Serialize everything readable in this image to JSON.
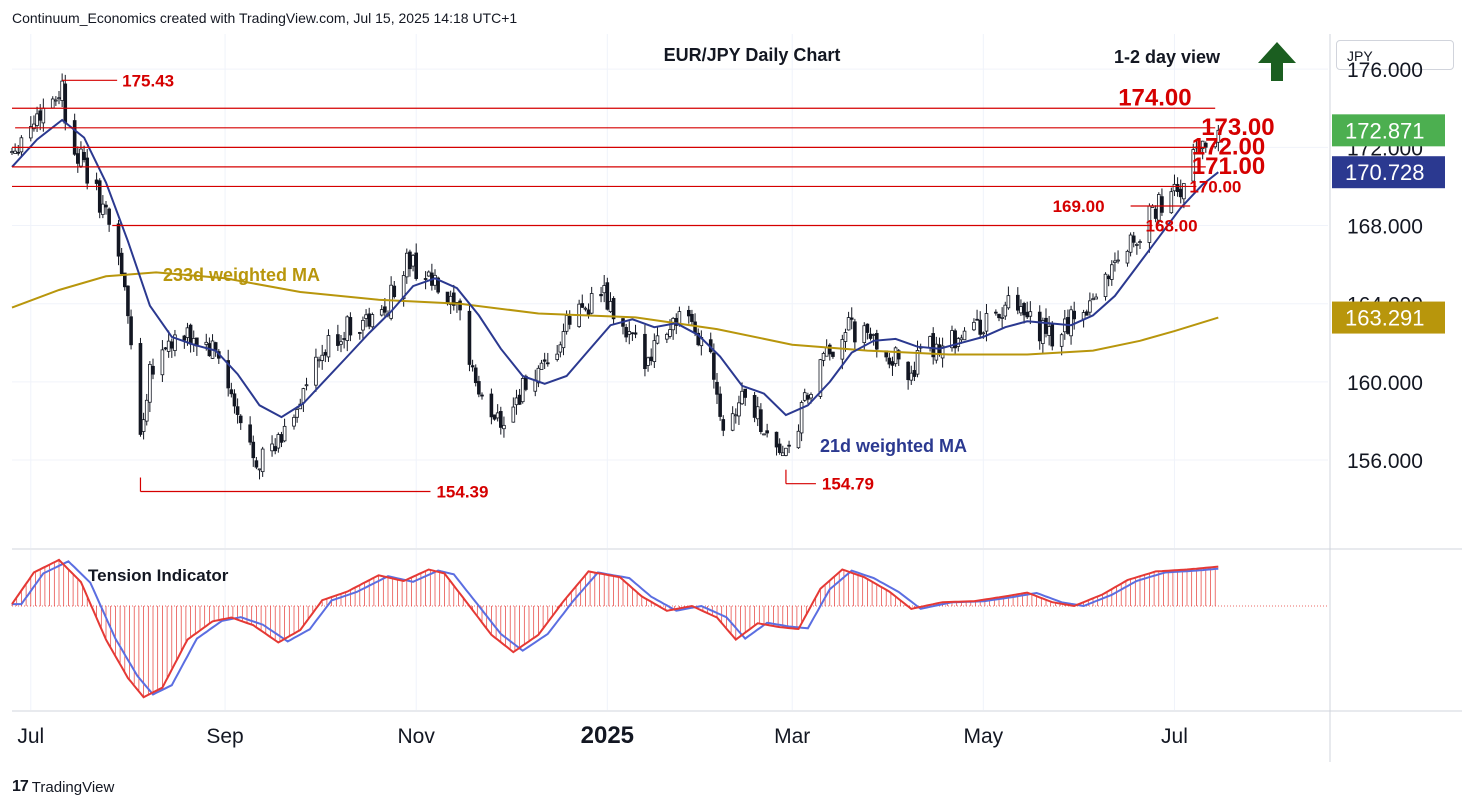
{
  "header": "Continuum_Economics created with TradingView.com, Jul 15, 2025 14:18 UTC+1",
  "brand": "TradingView",
  "currency": "JPY",
  "chart_data": {
    "type": "candlestick",
    "title": "EUR/JPY Daily Chart",
    "view_label": "1-2 day view",
    "view_direction": "up",
    "y_axis": {
      "ticks": [
        {
          "label": "176.000",
          "value": 176
        },
        {
          "label": "172.000",
          "value": 172
        },
        {
          "label": "168.000",
          "value": 168
        },
        {
          "label": "164.000",
          "value": 164
        },
        {
          "label": "160.000",
          "value": 160
        },
        {
          "label": "156.000",
          "value": 156
        }
      ],
      "range": [
        151.5,
        177.8
      ]
    },
    "x_axis": {
      "ticks": [
        {
          "label": "Jul",
          "date": "2024-07-01",
          "bold": false
        },
        {
          "label": "Sep",
          "date": "2024-09-01",
          "bold": false
        },
        {
          "label": "Nov",
          "date": "2024-11-01",
          "bold": false
        },
        {
          "label": "2025",
          "date": "2025-01-01",
          "bold": true
        },
        {
          "label": "Mar",
          "date": "2025-03-01",
          "bold": false
        },
        {
          "label": "May",
          "date": "2025-05-01",
          "bold": false
        },
        {
          "label": "Jul",
          "date": "2025-07-01",
          "bold": false
        }
      ],
      "range": [
        "2024-06-25",
        "2025-08-19"
      ]
    },
    "price_labels": [
      {
        "label": "172.871",
        "value": 172.871,
        "color": "#4caf50",
        "type": "last"
      },
      {
        "label": "170.728",
        "value": 170.728,
        "color": "#2b3990",
        "type": "ma21"
      },
      {
        "label": "163.291",
        "value": 163.291,
        "color": "#b8960c",
        "type": "ma233"
      }
    ],
    "levels": [
      {
        "label": "175.43",
        "value": 175.43,
        "start": "2024-07-11",
        "end": "2024-07-11",
        "label_size": "small"
      },
      {
        "label": "174.00",
        "value": 174.0,
        "start": "2024-06-25",
        "end": "2025-07-14",
        "label_size": "big"
      },
      {
        "label": "173.00",
        "value": 173.0,
        "start": "2024-06-26",
        "end": "2025-07-14",
        "label_size": "big"
      },
      {
        "label": "172.00",
        "value": 172.0,
        "start": "2024-06-25",
        "end": "2025-07-11",
        "label_size": "big"
      },
      {
        "label": "171.00",
        "value": 171.0,
        "start": "2024-06-25",
        "end": "2025-07-11",
        "label_size": "big"
      },
      {
        "label": "170.00",
        "value": 170.0,
        "start": "2024-06-25",
        "end": "2025-07-08",
        "label_size": "small"
      },
      {
        "label": "169.00",
        "value": 169.0,
        "start": "2025-06-17",
        "end": "2025-07-06",
        "label_size": "small_left"
      },
      {
        "label": "168.00",
        "value": 168.0,
        "start": "2024-07-27",
        "end": "2025-06-24",
        "label_size": "small"
      },
      {
        "label": "154.39",
        "value": 154.39,
        "start": "2024-08-05",
        "end": "2024-11-20",
        "label_size": "small"
      },
      {
        "label": "154.79",
        "value": 154.79,
        "start": "2025-02-27",
        "end": "2025-03-10",
        "label_size": "small"
      }
    ],
    "annotations": [
      {
        "text": "233d weighted MA",
        "color": "#b8960c"
      },
      {
        "text": "21d weighted MA",
        "color": "#2b3990"
      }
    ],
    "anchors": [
      {
        "date": "2024-06-25",
        "close": 171.9
      },
      {
        "date": "2024-07-03",
        "close": 173.6
      },
      {
        "date": "2024-07-11",
        "close": 175.1
      },
      {
        "date": "2024-07-12",
        "close": 173.5
      },
      {
        "date": "2024-07-17",
        "close": 171.3
      },
      {
        "date": "2024-07-24",
        "close": 168.9
      },
      {
        "date": "2024-07-29",
        "close": 166.8
      },
      {
        "date": "2024-08-02",
        "close": 162.2
      },
      {
        "date": "2024-08-05",
        "close": 157.2
      },
      {
        "date": "2024-08-08",
        "close": 160.8
      },
      {
        "date": "2024-08-14",
        "close": 162.0
      },
      {
        "date": "2024-08-22",
        "close": 162.2
      },
      {
        "date": "2024-08-30",
        "close": 161.3
      },
      {
        "date": "2024-09-05",
        "close": 158.0
      },
      {
        "date": "2024-09-11",
        "close": 156.1
      },
      {
        "date": "2024-09-17",
        "close": 156.5
      },
      {
        "date": "2024-09-27",
        "close": 159.8
      },
      {
        "date": "2024-10-04",
        "close": 161.8
      },
      {
        "date": "2024-10-11",
        "close": 162.9
      },
      {
        "date": "2024-10-21",
        "close": 163.3
      },
      {
        "date": "2024-10-29",
        "close": 166.2
      },
      {
        "date": "2024-11-04",
        "close": 165.5
      },
      {
        "date": "2024-11-08",
        "close": 164.6
      },
      {
        "date": "2024-11-15",
        "close": 163.2
      },
      {
        "date": "2024-11-22",
        "close": 158.8
      },
      {
        "date": "2024-11-29",
        "close": 158.1
      },
      {
        "date": "2024-12-06",
        "close": 159.9
      },
      {
        "date": "2024-12-13",
        "close": 160.5
      },
      {
        "date": "2024-12-20",
        "close": 163.2
      },
      {
        "date": "2024-12-30",
        "close": 164.6
      },
      {
        "date": "2025-01-06",
        "close": 162.5
      },
      {
        "date": "2025-01-13",
        "close": 161.3
      },
      {
        "date": "2025-01-20",
        "close": 162.8
      },
      {
        "date": "2025-01-24",
        "close": 163.3
      },
      {
        "date": "2025-02-03",
        "close": 161.6
      },
      {
        "date": "2025-02-07",
        "close": 157.8
      },
      {
        "date": "2025-02-14",
        "close": 159.5
      },
      {
        "date": "2025-02-21",
        "close": 157.3
      },
      {
        "date": "2025-02-28",
        "close": 156.1
      },
      {
        "date": "2025-03-04",
        "close": 158.5
      },
      {
        "date": "2025-03-11",
        "close": 161.0
      },
      {
        "date": "2025-03-18",
        "close": 162.8
      },
      {
        "date": "2025-03-28",
        "close": 162.0
      },
      {
        "date": "2025-04-07",
        "close": 160.5
      },
      {
        "date": "2025-04-14",
        "close": 161.7
      },
      {
        "date": "2025-04-25",
        "close": 162.6
      },
      {
        "date": "2025-05-02",
        "close": 163.0
      },
      {
        "date": "2025-05-09",
        "close": 163.8
      },
      {
        "date": "2025-05-16",
        "close": 163.0
      },
      {
        "date": "2025-05-23",
        "close": 162.2
      },
      {
        "date": "2025-05-30",
        "close": 163.3
      },
      {
        "date": "2025-06-06",
        "close": 164.5
      },
      {
        "date": "2025-06-13",
        "close": 166.5
      },
      {
        "date": "2025-06-20",
        "close": 167.7
      },
      {
        "date": "2025-06-27",
        "close": 169.2
      },
      {
        "date": "2025-07-03",
        "close": 169.8
      },
      {
        "date": "2025-07-08",
        "close": 171.9
      },
      {
        "date": "2025-07-11",
        "close": 172.3
      },
      {
        "date": "2025-07-15",
        "close": 172.871
      }
    ],
    "ma21_points": [
      {
        "date": "2024-06-25",
        "value": 171.0
      },
      {
        "date": "2024-07-03",
        "value": 172.4
      },
      {
        "date": "2024-07-11",
        "value": 173.4
      },
      {
        "date": "2024-07-18",
        "value": 172.5
      },
      {
        "date": "2024-07-25",
        "value": 170.2
      },
      {
        "date": "2024-08-01",
        "value": 167.2
      },
      {
        "date": "2024-08-08",
        "value": 163.9
      },
      {
        "date": "2024-08-15",
        "value": 162.3
      },
      {
        "date": "2024-08-22",
        "value": 161.9
      },
      {
        "date": "2024-08-29",
        "value": 161.6
      },
      {
        "date": "2024-09-05",
        "value": 160.4
      },
      {
        "date": "2024-09-12",
        "value": 158.8
      },
      {
        "date": "2024-09-19",
        "value": 158.2
      },
      {
        "date": "2024-09-26",
        "value": 158.9
      },
      {
        "date": "2024-10-03",
        "value": 160.1
      },
      {
        "date": "2024-10-10",
        "value": 161.3
      },
      {
        "date": "2024-10-17",
        "value": 162.5
      },
      {
        "date": "2024-10-24",
        "value": 163.6
      },
      {
        "date": "2024-10-31",
        "value": 164.9
      },
      {
        "date": "2024-11-07",
        "value": 165.3
      },
      {
        "date": "2024-11-14",
        "value": 164.8
      },
      {
        "date": "2024-11-21",
        "value": 163.4
      },
      {
        "date": "2024-11-28",
        "value": 161.7
      },
      {
        "date": "2024-12-05",
        "value": 160.3
      },
      {
        "date": "2024-12-12",
        "value": 159.9
      },
      {
        "date": "2024-12-19",
        "value": 160.3
      },
      {
        "date": "2024-12-26",
        "value": 161.6
      },
      {
        "date": "2025-01-02",
        "value": 162.9
      },
      {
        "date": "2025-01-09",
        "value": 163.2
      },
      {
        "date": "2025-01-16",
        "value": 162.8
      },
      {
        "date": "2025-01-23",
        "value": 163.0
      },
      {
        "date": "2025-01-30",
        "value": 162.4
      },
      {
        "date": "2025-02-06",
        "value": 161.3
      },
      {
        "date": "2025-02-13",
        "value": 159.8
      },
      {
        "date": "2025-02-20",
        "value": 159.4
      },
      {
        "date": "2025-02-27",
        "value": 158.3
      },
      {
        "date": "2025-03-06",
        "value": 158.8
      },
      {
        "date": "2025-03-13",
        "value": 160.0
      },
      {
        "date": "2025-03-20",
        "value": 161.5
      },
      {
        "date": "2025-03-27",
        "value": 162.1
      },
      {
        "date": "2025-04-03",
        "value": 162.2
      },
      {
        "date": "2025-04-10",
        "value": 161.8
      },
      {
        "date": "2025-04-17",
        "value": 161.7
      },
      {
        "date": "2025-04-24",
        "value": 162.0
      },
      {
        "date": "2025-05-01",
        "value": 162.3
      },
      {
        "date": "2025-05-08",
        "value": 162.8
      },
      {
        "date": "2025-05-15",
        "value": 163.1
      },
      {
        "date": "2025-05-22",
        "value": 163.0
      },
      {
        "date": "2025-05-29",
        "value": 162.9
      },
      {
        "date": "2025-06-05",
        "value": 163.4
      },
      {
        "date": "2025-06-12",
        "value": 164.4
      },
      {
        "date": "2025-06-19",
        "value": 165.9
      },
      {
        "date": "2025-06-26",
        "value": 167.4
      },
      {
        "date": "2025-07-03",
        "value": 168.9
      },
      {
        "date": "2025-07-10",
        "value": 170.1
      },
      {
        "date": "2025-07-15",
        "value": 170.728
      }
    ],
    "ma233_points": [
      {
        "date": "2024-06-25",
        "value": 163.8
      },
      {
        "date": "2024-07-10",
        "value": 164.7
      },
      {
        "date": "2024-07-25",
        "value": 165.4
      },
      {
        "date": "2024-08-10",
        "value": 165.6
      },
      {
        "date": "2024-09-01",
        "value": 165.3
      },
      {
        "date": "2024-09-25",
        "value": 164.6
      },
      {
        "date": "2024-10-20",
        "value": 164.2
      },
      {
        "date": "2024-11-15",
        "value": 164.0
      },
      {
        "date": "2024-12-10",
        "value": 163.5
      },
      {
        "date": "2025-01-10",
        "value": 163.3
      },
      {
        "date": "2025-02-05",
        "value": 162.7
      },
      {
        "date": "2025-03-01",
        "value": 161.9
      },
      {
        "date": "2025-03-25",
        "value": 161.6
      },
      {
        "date": "2025-04-20",
        "value": 161.4
      },
      {
        "date": "2025-05-15",
        "value": 161.4
      },
      {
        "date": "2025-06-05",
        "value": 161.6
      },
      {
        "date": "2025-06-20",
        "value": 162.1
      },
      {
        "date": "2025-07-01",
        "value": 162.6
      },
      {
        "date": "2025-07-15",
        "value": 163.291
      }
    ],
    "tension_indicator": {
      "title": "Tension Indicator",
      "range": [
        -1,
        1
      ],
      "points": [
        {
          "date": "2024-06-25",
          "value": 0.02
        },
        {
          "date": "2024-07-02",
          "value": 0.35
        },
        {
          "date": "2024-07-10",
          "value": 0.48
        },
        {
          "date": "2024-07-17",
          "value": 0.25
        },
        {
          "date": "2024-07-25",
          "value": -0.35
        },
        {
          "date": "2024-08-01",
          "value": -0.75
        },
        {
          "date": "2024-08-06",
          "value": -0.95
        },
        {
          "date": "2024-08-12",
          "value": -0.85
        },
        {
          "date": "2024-08-20",
          "value": -0.35
        },
        {
          "date": "2024-08-28",
          "value": -0.16
        },
        {
          "date": "2024-09-03",
          "value": -0.12
        },
        {
          "date": "2024-09-10",
          "value": -0.2
        },
        {
          "date": "2024-09-18",
          "value": -0.38
        },
        {
          "date": "2024-09-25",
          "value": -0.25
        },
        {
          "date": "2024-10-02",
          "value": 0.06
        },
        {
          "date": "2024-10-10",
          "value": 0.15
        },
        {
          "date": "2024-10-20",
          "value": 0.32
        },
        {
          "date": "2024-10-28",
          "value": 0.26
        },
        {
          "date": "2024-11-05",
          "value": 0.38
        },
        {
          "date": "2024-11-10",
          "value": 0.34
        },
        {
          "date": "2024-11-18",
          "value": 0.0
        },
        {
          "date": "2024-11-25",
          "value": -0.3
        },
        {
          "date": "2024-12-02",
          "value": -0.48
        },
        {
          "date": "2024-12-10",
          "value": -0.3
        },
        {
          "date": "2024-12-18",
          "value": 0.05
        },
        {
          "date": "2024-12-26",
          "value": 0.36
        },
        {
          "date": "2025-01-05",
          "value": 0.3
        },
        {
          "date": "2025-01-12",
          "value": 0.1
        },
        {
          "date": "2025-01-20",
          "value": -0.05
        },
        {
          "date": "2025-01-28",
          "value": 0.0
        },
        {
          "date": "2025-02-05",
          "value": -0.12
        },
        {
          "date": "2025-02-11",
          "value": -0.35
        },
        {
          "date": "2025-02-18",
          "value": -0.18
        },
        {
          "date": "2025-02-25",
          "value": -0.22
        },
        {
          "date": "2025-03-03",
          "value": -0.24
        },
        {
          "date": "2025-03-10",
          "value": 0.18
        },
        {
          "date": "2025-03-17",
          "value": 0.38
        },
        {
          "date": "2025-03-24",
          "value": 0.3
        },
        {
          "date": "2025-04-01",
          "value": 0.15
        },
        {
          "date": "2025-04-08",
          "value": -0.03
        },
        {
          "date": "2025-04-18",
          "value": 0.04
        },
        {
          "date": "2025-04-28",
          "value": 0.05
        },
        {
          "date": "2025-05-08",
          "value": 0.1
        },
        {
          "date": "2025-05-15",
          "value": 0.14
        },
        {
          "date": "2025-05-23",
          "value": 0.04
        },
        {
          "date": "2025-05-30",
          "value": 0.0
        },
        {
          "date": "2025-06-08",
          "value": 0.12
        },
        {
          "date": "2025-06-16",
          "value": 0.27
        },
        {
          "date": "2025-06-25",
          "value": 0.36
        },
        {
          "date": "2025-07-05",
          "value": 0.38
        },
        {
          "date": "2025-07-15",
          "value": 0.41
        }
      ]
    }
  }
}
